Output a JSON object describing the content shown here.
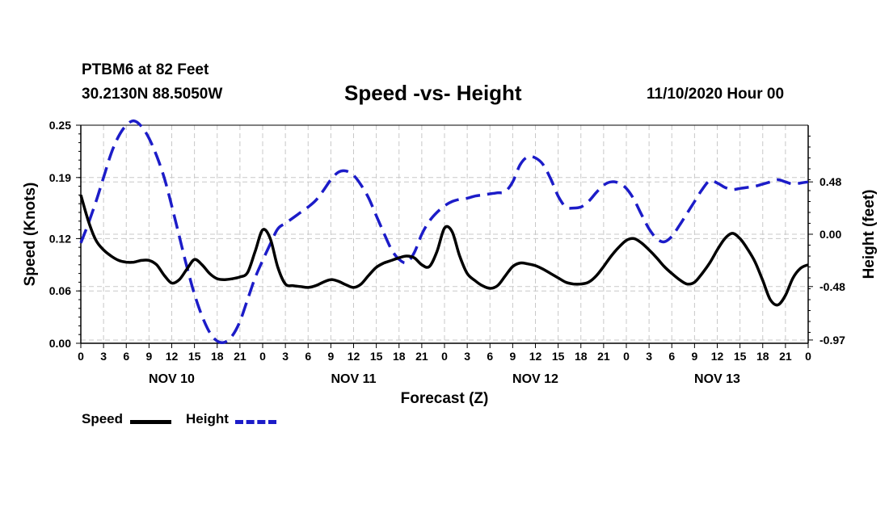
{
  "header": {
    "station": "PTBM6 at 82 Feet",
    "coords": "30.2130N 88.5050W",
    "title": "Speed -vs- Height",
    "datetime": "11/10/2020 Hour 00"
  },
  "legend": {
    "speed": "Speed",
    "height": "Height"
  },
  "colors": {
    "speed": "#000000",
    "height": "#1c1cc8",
    "grid": "#c8c8c8"
  },
  "chart_data": {
    "type": "line",
    "title": "Speed -vs- Height",
    "xlabel": "Forecast (Z)",
    "ylabel": "Speed (Knots)",
    "y2label": "Height (feet)",
    "x_unit": "hours from 11/10/2020 00Z",
    "xlim": [
      0,
      96
    ],
    "ylim": [
      0,
      0.25
    ],
    "y2lim": [
      -1.0,
      1.0
    ],
    "x_ticks": [
      0,
      3,
      6,
      9,
      12,
      15,
      18,
      21,
      24,
      27,
      30,
      33,
      36,
      39,
      42,
      45,
      48,
      51,
      54,
      57,
      60,
      63,
      66,
      69,
      72,
      75,
      78,
      81,
      84,
      87,
      90,
      93,
      96
    ],
    "x_tick_labels": [
      "0",
      "3",
      "6",
      "9",
      "12",
      "15",
      "18",
      "21",
      "0",
      "3",
      "6",
      "9",
      "12",
      "15",
      "18",
      "21",
      "0",
      "3",
      "6",
      "9",
      "12",
      "15",
      "18",
      "21",
      "0",
      "3",
      "6",
      "9",
      "12",
      "15",
      "18",
      "21",
      "0"
    ],
    "day_labels": [
      {
        "label": "NOV 10",
        "x": 12
      },
      {
        "label": "NOV 11",
        "x": 36
      },
      {
        "label": "NOV 12",
        "x": 60
      },
      {
        "label": "NOV 13",
        "x": 84
      }
    ],
    "y_ticks": [
      0.0,
      0.06,
      0.12,
      0.19,
      0.25
    ],
    "y_tick_labels": [
      "0.00",
      "0.06",
      "0.12",
      "0.19",
      "0.25"
    ],
    "y2_ticks": [
      -0.97,
      -0.48,
      0.0,
      0.48
    ],
    "y2_tick_labels": [
      "-0.97",
      "-0.48",
      "0.00",
      "0.48"
    ],
    "grid": true,
    "legend_position": "bottom-left",
    "series": [
      {
        "name": "Speed",
        "axis": "left",
        "style": "solid",
        "x": [
          0,
          1,
          2,
          3,
          4,
          5,
          6,
          7,
          8,
          9,
          10,
          11,
          12,
          13,
          14,
          15,
          16,
          17,
          18,
          19,
          20,
          21,
          22,
          23,
          24,
          25,
          26,
          27,
          28,
          29,
          30,
          31,
          32,
          33,
          34,
          35,
          36,
          37,
          38,
          39,
          40,
          41,
          42,
          43,
          44,
          45,
          46,
          47,
          48,
          49,
          50,
          51,
          52,
          53,
          54,
          55,
          56,
          57,
          58,
          59,
          60,
          61,
          62,
          63,
          64,
          65,
          66,
          67,
          68,
          69,
          70,
          71,
          72,
          73,
          74,
          75,
          76,
          77,
          78,
          79,
          80,
          81,
          82,
          83,
          84,
          85,
          86,
          87,
          88,
          89,
          90,
          91,
          92,
          93,
          94,
          95,
          96
        ],
        "values": [
          0.17,
          0.14,
          0.118,
          0.107,
          0.1,
          0.095,
          0.093,
          0.093,
          0.095,
          0.095,
          0.09,
          0.078,
          0.069,
          0.073,
          0.085,
          0.096,
          0.09,
          0.08,
          0.074,
          0.073,
          0.074,
          0.076,
          0.081,
          0.105,
          0.13,
          0.12,
          0.087,
          0.068,
          0.066,
          0.065,
          0.064,
          0.066,
          0.07,
          0.073,
          0.071,
          0.067,
          0.064,
          0.068,
          0.078,
          0.087,
          0.092,
          0.095,
          0.098,
          0.1,
          0.098,
          0.09,
          0.088,
          0.105,
          0.132,
          0.128,
          0.1,
          0.08,
          0.072,
          0.066,
          0.063,
          0.066,
          0.077,
          0.088,
          0.092,
          0.091,
          0.089,
          0.085,
          0.08,
          0.075,
          0.07,
          0.068,
          0.068,
          0.07,
          0.077,
          0.088,
          0.1,
          0.11,
          0.118,
          0.12,
          0.115,
          0.107,
          0.098,
          0.088,
          0.08,
          0.073,
          0.068,
          0.07,
          0.08,
          0.092,
          0.107,
          0.12,
          0.126,
          0.12,
          0.108,
          0.093,
          0.072,
          0.05,
          0.044,
          0.055,
          0.075,
          0.086,
          0.09
        ]
      },
      {
        "name": "Height",
        "axis": "right",
        "style": "dashed",
        "x": [
          0,
          1,
          2,
          3,
          4,
          5,
          6,
          7,
          8,
          9,
          10,
          11,
          12,
          13,
          14,
          15,
          16,
          17,
          18,
          19,
          20,
          21,
          22,
          23,
          24,
          25,
          26,
          27,
          28,
          29,
          30,
          31,
          32,
          33,
          34,
          35,
          36,
          37,
          38,
          39,
          40,
          41,
          42,
          43,
          44,
          45,
          46,
          47,
          48,
          49,
          50,
          51,
          52,
          53,
          54,
          55,
          56,
          57,
          58,
          59,
          60,
          61,
          62,
          63,
          64,
          65,
          66,
          67,
          68,
          69,
          70,
          71,
          72,
          73,
          74,
          75,
          76,
          77,
          78,
          79,
          80,
          81,
          82,
          83,
          84,
          85,
          86,
          87,
          88,
          89,
          90,
          91,
          92,
          93,
          94,
          95,
          96
        ],
        "values": [
          -0.08,
          0.1,
          0.3,
          0.52,
          0.74,
          0.9,
          1.0,
          1.04,
          0.99,
          0.88,
          0.72,
          0.52,
          0.26,
          -0.02,
          -0.3,
          -0.55,
          -0.75,
          -0.9,
          -0.98,
          -0.99,
          -0.93,
          -0.8,
          -0.6,
          -0.4,
          -0.24,
          -0.09,
          0.05,
          0.1,
          0.15,
          0.2,
          0.25,
          0.31,
          0.4,
          0.5,
          0.57,
          0.58,
          0.54,
          0.45,
          0.33,
          0.17,
          0.01,
          -0.14,
          -0.23,
          -0.26,
          -0.17,
          0.0,
          0.12,
          0.2,
          0.26,
          0.3,
          0.32,
          0.33,
          0.35,
          0.36,
          0.37,
          0.38,
          0.39,
          0.48,
          0.64,
          0.71,
          0.7,
          0.64,
          0.51,
          0.35,
          0.25,
          0.24,
          0.25,
          0.3,
          0.38,
          0.45,
          0.48,
          0.47,
          0.42,
          0.32,
          0.18,
          0.05,
          -0.04,
          -0.07,
          -0.02,
          0.08,
          0.19,
          0.3,
          0.41,
          0.49,
          0.47,
          0.43,
          0.41,
          0.42,
          0.43,
          0.44,
          0.46,
          0.48,
          0.5,
          0.48,
          0.46,
          0.47,
          0.48
        ]
      }
    ]
  }
}
